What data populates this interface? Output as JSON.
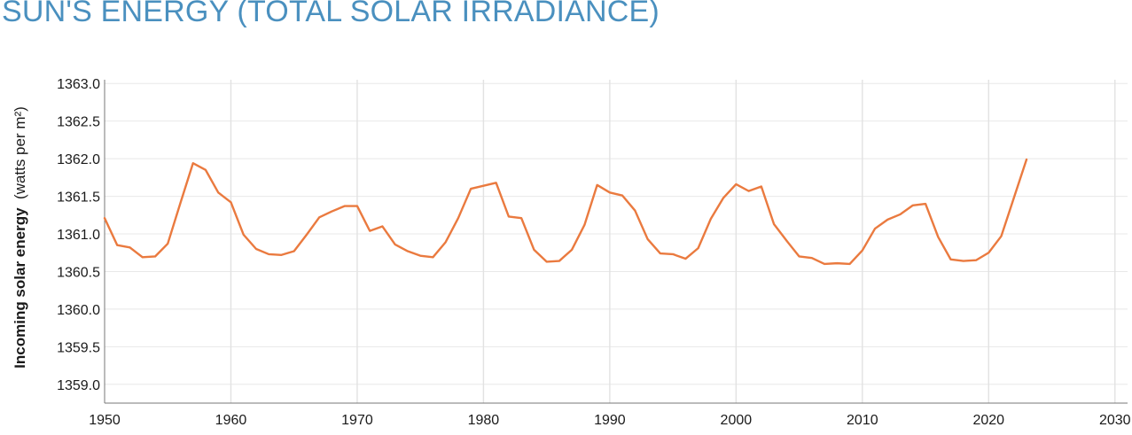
{
  "title": "SUN'S ENERGY (TOTAL SOLAR IRRADIANCE)",
  "colors": {
    "title": "#4a90bf",
    "line": "#ea7a3f",
    "grid": "#e8e8e8"
  },
  "chart_data": {
    "type": "line",
    "title": "SUN'S ENERGY (TOTAL SOLAR IRRADIANCE)",
    "ylabel_bold": "Incoming solar energy",
    "ylabel_unit": "(watts per m²)",
    "xlabel": "",
    "xlim": [
      1950,
      2031
    ],
    "ylim": [
      1358.75,
      1363.05
    ],
    "x_ticks": [
      "1950",
      "1960",
      "1970",
      "1980",
      "1990",
      "2000",
      "2010",
      "2020",
      "2030"
    ],
    "y_ticks": [
      "1363.0",
      "1362.5",
      "1362.0",
      "1361.5",
      "1361.0",
      "1360.5",
      "1360.0",
      "1359.5",
      "1359.0"
    ],
    "grid": true,
    "legend": "none",
    "series": [
      {
        "color": "#ea7a3f",
        "x": [
          1950,
          1951,
          1952,
          1953,
          1954,
          1955,
          1956,
          1957,
          1958,
          1959,
          1960,
          1961,
          1962,
          1963,
          1964,
          1965,
          1966,
          1967,
          1968,
          1969,
          1970,
          1971,
          1972,
          1973,
          1974,
          1975,
          1976,
          1977,
          1978,
          1979,
          1980,
          1981,
          1982,
          1983,
          1984,
          1985,
          1986,
          1987,
          1988,
          1989,
          1990,
          1991,
          1992,
          1993,
          1994,
          1995,
          1996,
          1997,
          1998,
          1999,
          2000,
          2001,
          2002,
          2003,
          2004,
          2005,
          2006,
          2007,
          2008,
          2009,
          2010,
          2011,
          2012,
          2013,
          2014,
          2015,
          2016,
          2017,
          2018,
          2019,
          2020,
          2021,
          2022,
          2023
        ],
        "values": [
          1361.21,
          1360.85,
          1360.82,
          1360.69,
          1360.7,
          1360.87,
          1361.41,
          1361.94,
          1361.85,
          1361.55,
          1361.42,
          1360.99,
          1360.8,
          1360.73,
          1360.72,
          1360.77,
          1360.99,
          1361.22,
          1361.3,
          1361.37,
          1361.37,
          1361.04,
          1361.1,
          1360.86,
          1360.77,
          1360.71,
          1360.69,
          1360.89,
          1361.21,
          1361.6,
          1361.64,
          1361.68,
          1361.23,
          1361.21,
          1360.79,
          1360.63,
          1360.64,
          1360.79,
          1361.12,
          1361.65,
          1361.55,
          1361.51,
          1361.31,
          1360.93,
          1360.74,
          1360.73,
          1360.67,
          1360.81,
          1361.2,
          1361.48,
          1361.66,
          1361.57,
          1361.63,
          1361.13,
          1360.91,
          1360.7,
          1360.68,
          1360.6,
          1360.61,
          1360.6,
          1360.78,
          1361.07,
          1361.19,
          1361.26,
          1361.38,
          1361.4,
          1360.96,
          1360.66,
          1360.64,
          1360.65,
          1360.75,
          1360.97,
          1361.48,
          1361.99
        ]
      }
    ]
  }
}
